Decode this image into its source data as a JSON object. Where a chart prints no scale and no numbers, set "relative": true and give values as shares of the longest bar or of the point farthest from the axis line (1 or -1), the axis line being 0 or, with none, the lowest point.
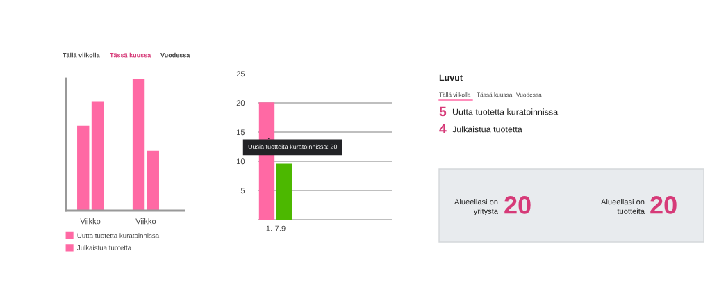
{
  "chart_data": [
    {
      "type": "bar",
      "relative": true,
      "categories": [
        "Viikko",
        "Viikko"
      ],
      "series": [
        {
          "name": "Uutta tuotetta kuratoinnissa",
          "color": "#ff69a4",
          "values": [
            0.64,
            1.0
          ]
        },
        {
          "name": "Julkaistua tuotetta",
          "color": "#ff69a4",
          "values": [
            0.82,
            0.45
          ]
        }
      ],
      "annotations": [
        "Tällä viikolla",
        "Tässä kuussa",
        "Vuodessa"
      ],
      "legend": "bottom",
      "grid": false
    },
    {
      "type": "bar",
      "categories": [
        "1.-7.9"
      ],
      "series": [
        {
          "color": "#ff69a4",
          "values": [
            20
          ]
        },
        {
          "color": "#4cb800",
          "values": [
            9.5
          ]
        }
      ],
      "ylim": [
        0,
        25
      ],
      "yticks": [
        {
          "value": 0,
          "label": null
        },
        5,
        10,
        15,
        20,
        25
      ],
      "grid": "y",
      "annotations": [
        {
          "text": "Uusia tuotteita kuratoinnissa: 20",
          "x": "1.-7.9",
          "y": 14
        }
      ]
    },
    {
      "type": "other",
      "title": "Luvut",
      "annotations": [
        "Tällä viikolla",
        "Tässä kuussa",
        "Vuodessa",
        "5",
        "Uutta tuotetta kuratoinnissa",
        "4",
        "Julkaistua tuotetta",
        "Alueellasi on\nyritystä",
        "20",
        "Alueellasi on\ntuotteita",
        "20"
      ]
    }
  ]
}
